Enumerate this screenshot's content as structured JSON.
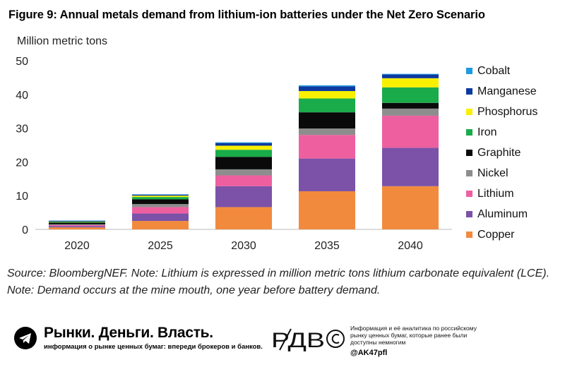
{
  "chart_data": {
    "type": "bar",
    "stacked": true,
    "title": "Figure 9: Annual metals demand from lithium-ion batteries under the Net Zero Scenario",
    "ylabel": "Million metric tons",
    "xlabel": "",
    "ylim": [
      0,
      50
    ],
    "yticks": [
      0,
      10,
      20,
      30,
      40,
      50
    ],
    "grid": false,
    "legend_position": "right",
    "categories": [
      "2020",
      "2025",
      "2030",
      "2035",
      "2040"
    ],
    "series": [
      {
        "name": "Copper",
        "color": "#f28a3e",
        "values": [
          0.6,
          2.5,
          6.6,
          11.3,
          12.8
        ]
      },
      {
        "name": "Aluminum",
        "color": "#7b52a8",
        "values": [
          0.4,
          2.2,
          6.2,
          9.7,
          11.4
        ]
      },
      {
        "name": "Lithium",
        "color": "#ee5fa0",
        "values": [
          0.3,
          1.9,
          3.2,
          7.0,
          9.5
        ]
      },
      {
        "name": "Nickel",
        "color": "#8d8d8d",
        "values": [
          0.2,
          0.9,
          1.8,
          1.9,
          2.1
        ]
      },
      {
        "name": "Graphite",
        "color": "#0a0a0a",
        "values": [
          0.5,
          1.4,
          3.7,
          4.8,
          1.7
        ]
      },
      {
        "name": "Iron",
        "color": "#1aab4a",
        "values": [
          0.2,
          0.7,
          2.1,
          4.1,
          4.6
        ]
      },
      {
        "name": "Phosphorus",
        "color": "#f9f000",
        "values": [
          0.1,
          0.4,
          1.2,
          2.2,
          2.7
        ]
      },
      {
        "name": "Manganese",
        "color": "#0d3aa0",
        "values": [
          0.2,
          0.3,
          0.8,
          1.4,
          1.1
        ]
      },
      {
        "name": "Cobalt",
        "color": "#1e9be0",
        "values": [
          0.1,
          0.1,
          0.2,
          0.3,
          0.2
        ]
      }
    ]
  },
  "source_note": "Source: BloombergNEF. Note: Lithium is expressed in million metric tons lithium carbonate equivalent (LCE). Note: Demand occurs at the mine mouth, one year before battery demand.",
  "footer": {
    "brand_title": "Рынки. Деньги. Власть.",
    "brand_subtitle": "информация о рынке ценных бумаг: впереди брокеров и банков.",
    "telegram_icon": "telegram-icon",
    "pvb_logo": "РДВ©",
    "info_text": "Информация и её аналитика по российскому рынку ценных бумаг, которые ранее были доступны немногим",
    "handle": "@AK47pfl"
  }
}
